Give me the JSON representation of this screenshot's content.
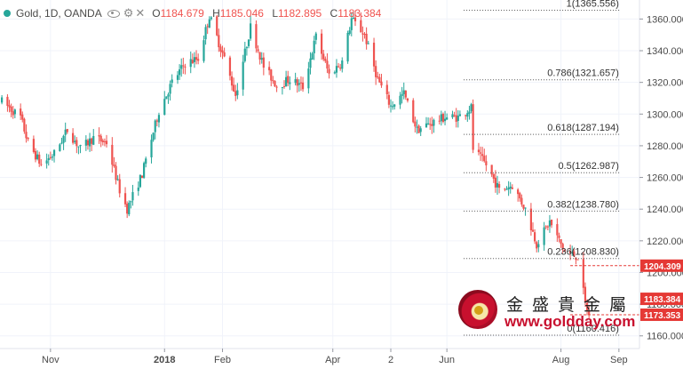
{
  "legend": {
    "symbol": "Gold, 1D, OANDA",
    "open_label": "O",
    "open": "1184.679",
    "high_label": "H",
    "high": "1185.046",
    "low_label": "L",
    "low": "1182.895",
    "close_label": "C",
    "close": "1183.384",
    "icons": [
      "eye-icon",
      "gear-icon",
      "close-icon"
    ]
  },
  "watermark": {
    "title": "金盛貴金屬",
    "url": "www.goldday.com"
  },
  "colors": {
    "up": "#26a69a",
    "down": "#ef5350",
    "fib_line": "#555555",
    "price_tag": "#e53935"
  },
  "chart_data": {
    "type": "candlestick",
    "title": "Gold, 1D, OANDA",
    "xlabel": "",
    "ylabel": "",
    "ylim": [
      1152,
      1372
    ],
    "y_ticks": [
      1160.0,
      1180.0,
      1200.0,
      1220.0,
      1240.0,
      1260.0,
      1280.0,
      1300.0,
      1320.0,
      1340.0,
      1360.0
    ],
    "x_ticks": [
      {
        "label": "Nov",
        "date": "2017-11-01"
      },
      {
        "label": "2018",
        "date": "2018-01-01"
      },
      {
        "label": "Feb",
        "date": "2018-02-01"
      },
      {
        "label": "Apr",
        "date": "2018-04-01"
      },
      {
        "label": "2",
        "date": "2018-05-02"
      },
      {
        "label": "Jun",
        "date": "2018-06-01"
      },
      {
        "label": "Aug",
        "date": "2018-08-01"
      },
      {
        "label": "Sep",
        "date": "2018-09-01"
      }
    ],
    "x_range": [
      "2017-10-05",
      "2018-09-12"
    ],
    "price_path": [
      {
        "date": "2017-10-06",
        "price": 1308
      },
      {
        "date": "2017-10-16",
        "price": 1298
      },
      {
        "date": "2017-10-20",
        "price": 1282
      },
      {
        "date": "2017-10-27",
        "price": 1268
      },
      {
        "date": "2017-11-03",
        "price": 1275
      },
      {
        "date": "2017-11-10",
        "price": 1290
      },
      {
        "date": "2017-11-17",
        "price": 1278
      },
      {
        "date": "2017-11-24",
        "price": 1285
      },
      {
        "date": "2017-12-01",
        "price": 1282
      },
      {
        "date": "2017-12-08",
        "price": 1252
      },
      {
        "date": "2017-12-12",
        "price": 1240
      },
      {
        "date": "2017-12-20",
        "price": 1262
      },
      {
        "date": "2017-12-29",
        "price": 1302
      },
      {
        "date": "2018-01-05",
        "price": 1320
      },
      {
        "date": "2018-01-12",
        "price": 1332
      },
      {
        "date": "2018-01-19",
        "price": 1335
      },
      {
        "date": "2018-01-25",
        "price": 1362
      },
      {
        "date": "2018-02-02",
        "price": 1335
      },
      {
        "date": "2018-02-08",
        "price": 1312
      },
      {
        "date": "2018-02-16",
        "price": 1355
      },
      {
        "date": "2018-02-23",
        "price": 1330
      },
      {
        "date": "2018-03-02",
        "price": 1318
      },
      {
        "date": "2018-03-09",
        "price": 1322
      },
      {
        "date": "2018-03-16",
        "price": 1317
      },
      {
        "date": "2018-03-23",
        "price": 1349
      },
      {
        "date": "2018-03-30",
        "price": 1325
      },
      {
        "date": "2018-04-06",
        "price": 1333
      },
      {
        "date": "2018-04-11",
        "price": 1360
      },
      {
        "date": "2018-04-18",
        "price": 1350
      },
      {
        "date": "2018-04-25",
        "price": 1322
      },
      {
        "date": "2018-05-02",
        "price": 1305
      },
      {
        "date": "2018-05-09",
        "price": 1313
      },
      {
        "date": "2018-05-16",
        "price": 1290
      },
      {
        "date": "2018-05-23",
        "price": 1294
      },
      {
        "date": "2018-05-31",
        "price": 1298
      },
      {
        "date": "2018-06-07",
        "price": 1298
      },
      {
        "date": "2018-06-14",
        "price": 1304
      },
      {
        "date": "2018-06-15",
        "price": 1278
      },
      {
        "date": "2018-06-22",
        "price": 1268
      },
      {
        "date": "2018-06-29",
        "price": 1252
      },
      {
        "date": "2018-07-06",
        "price": 1255
      },
      {
        "date": "2018-07-13",
        "price": 1240
      },
      {
        "date": "2018-07-19",
        "price": 1218
      },
      {
        "date": "2018-07-26",
        "price": 1232
      },
      {
        "date": "2018-08-03",
        "price": 1213
      },
      {
        "date": "2018-08-10",
        "price": 1210
      },
      {
        "date": "2018-08-14",
        "price": 1180
      },
      {
        "date": "2018-08-16",
        "price": 1173
      }
    ],
    "fibonacci": {
      "start_date": "2018-06-10",
      "end_date": "2018-09-02",
      "levels": [
        {
          "label": "1(1365.556)",
          "ratio": 1,
          "price": 1365.556
        },
        {
          "label": "0.786(1321.657)",
          "ratio": 0.786,
          "price": 1321.657
        },
        {
          "label": "0.618(1287.194)",
          "ratio": 0.618,
          "price": 1287.194
        },
        {
          "label": "0.5(1262.987)",
          "ratio": 0.5,
          "price": 1262.987
        },
        {
          "label": "0.382(1238.780)",
          "ratio": 0.382,
          "price": 1238.78
        },
        {
          "label": "0.236(1208.830)",
          "ratio": 0.236,
          "price": 1208.83
        },
        {
          "label": "0(1160.416)",
          "ratio": 0,
          "price": 1160.416
        }
      ]
    },
    "price_tags": [
      {
        "price": 1204.309,
        "label": "1204.309",
        "color": "#e53935"
      },
      {
        "price": 1183.384,
        "label": "1183.384",
        "color": "#e53935"
      },
      {
        "price": 1173.353,
        "label": "1173.353",
        "color": "#e53935"
      }
    ]
  }
}
